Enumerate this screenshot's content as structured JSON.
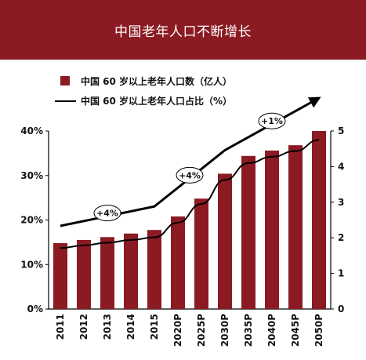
{
  "title": "中国老年人口不断增长",
  "colors": {
    "banner": "#8b1a23",
    "bar": "#8b1a23",
    "line": "#000000"
  },
  "chart_data": {
    "type": "bar",
    "categories": [
      "2011",
      "2012",
      "2013",
      "2014",
      "2015",
      "2020P",
      "2025P",
      "2030P",
      "2035P",
      "2040P",
      "2045P",
      "2050P"
    ],
    "series": [
      {
        "name": "中国 60 岁以上老年人口数（亿人）",
        "type": "bar",
        "axis": "right",
        "values": [
          1.85,
          1.94,
          2.02,
          2.12,
          2.22,
          2.6,
          3.1,
          3.8,
          4.3,
          4.45,
          4.6,
          5.0
        ]
      },
      {
        "name": "中国 60 岁以上老年人口占比（%）",
        "type": "line",
        "axis": "left",
        "values": [
          13.7,
          14.3,
          14.9,
          15.5,
          16.1,
          19.4,
          23.6,
          29.0,
          32.8,
          34.2,
          35.5,
          38.0
        ]
      }
    ],
    "left_axis": {
      "ticks": [
        "0%",
        "10%",
        "20%",
        "30%",
        "40%"
      ],
      "ylim": [
        0,
        40
      ]
    },
    "right_axis": {
      "ticks": [
        "0",
        "1",
        "2",
        "3",
        "4",
        "5"
      ],
      "ylim": [
        0,
        5
      ]
    },
    "annotations": [
      {
        "label": "+4%",
        "from": 0,
        "to": 4
      },
      {
        "label": "+4%",
        "from": 4,
        "to": 7
      },
      {
        "label": "+1%",
        "from": 7,
        "to": 11
      }
    ],
    "legend_position": "top-left"
  }
}
